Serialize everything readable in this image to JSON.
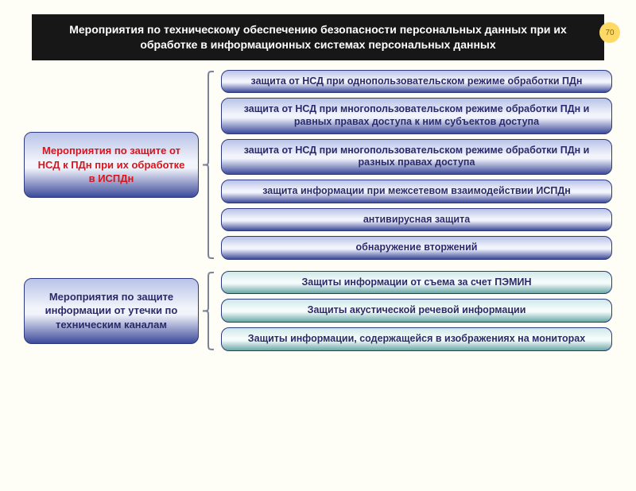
{
  "page_number": "70",
  "colors": {
    "bg": "#fffef6",
    "header_bg": "#171717",
    "header_text": "#ffffff",
    "badge_bg": "#ffd966",
    "badge_text": "#7a6a1a",
    "blue_border": "#2e3a80",
    "brace": "#7a8296",
    "blue_grad_top": "#b9c3e8",
    "blue_grad_mid": "#f2f4fb",
    "blue_grad_bot": "#3c4a9a",
    "blue_text": "#2a2a6a",
    "red_text": "#d8141c",
    "teal_grad_top": "#cfe8e8",
    "teal_grad_mid": "#f5fbfb",
    "teal_grad_bot": "#6aa7a7"
  },
  "header": "Мероприятия по техническому обеспечению безопасности персональных данных при их обработке в информационных системах персональных данных",
  "groups": [
    {
      "left": "Мероприятия по защите от НСД к ПДн при их обработке в ИСПДн",
      "left_text_color": "red",
      "scheme": "blue",
      "items": [
        "защита от НСД при однопользовательском режиме обработки ПДн",
        "защита от НСД при многопользовательском режиме обработки ПДн и равных правах доступа к ним субъектов доступа",
        "защита от НСД при многопользовательском режиме обработки ПДн и разных правах доступа",
        "защита информации при межсетевом взаимодействии ИСПДн",
        "антивирусная защита",
        "обнаружение вторжений"
      ]
    },
    {
      "left": "Мероприятия по защите информации от утечки по техническим каналам",
      "left_text_color": "blue",
      "scheme": "teal",
      "items": [
        "Защиты информации от съема за счет ПЭМИН",
        "Защиты акустической речевой информации",
        "Защиты информации, содержащейся в изображениях на мониторах"
      ]
    }
  ],
  "typography": {
    "header_fontsize": 14,
    "left_fontsize": 13,
    "right_fontsize": 12.5,
    "badge_fontsize": 10,
    "font_family": "Arial"
  }
}
